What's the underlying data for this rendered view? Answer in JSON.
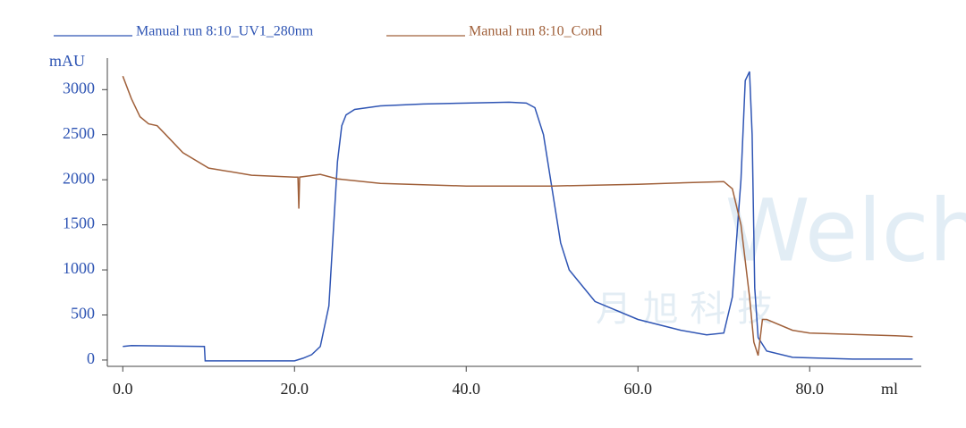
{
  "chart_data": {
    "type": "line",
    "y_label": "mAU",
    "x_label": "ml",
    "watermark": [
      "Welch",
      "月 旭 科 技"
    ],
    "xlim": [
      -1.8,
      93
    ],
    "ylim": [
      -70,
      3350
    ],
    "xticks": [
      {
        "value": 0,
        "label": "0.0"
      },
      {
        "value": 20,
        "label": "20.0"
      },
      {
        "value": 40,
        "label": "40.0"
      },
      {
        "value": 60,
        "label": "60.0"
      },
      {
        "value": 80,
        "label": "80.0"
      }
    ],
    "yticks": [
      0,
      500,
      1000,
      1500,
      2000,
      2500,
      3000
    ],
    "series": [
      {
        "name": "Manual run 8:10_UV1_280nm",
        "color": "#2f55b4",
        "x": [
          0,
          1,
          9.5,
          9.6,
          20,
          21,
          22,
          23,
          24,
          25,
          25.5,
          26,
          27,
          30,
          35,
          40,
          45,
          47,
          48,
          49,
          50,
          51,
          52,
          55,
          60,
          65,
          68,
          70,
          71,
          72,
          72.5,
          73,
          73.3,
          73.6,
          74,
          75,
          78,
          85,
          92
        ],
        "values": [
          150,
          160,
          150,
          -10,
          -10,
          20,
          60,
          150,
          600,
          2200,
          2600,
          2720,
          2780,
          2820,
          2840,
          2850,
          2860,
          2850,
          2800,
          2500,
          1900,
          1300,
          1000,
          650,
          450,
          330,
          280,
          300,
          700,
          2000,
          3100,
          3200,
          2500,
          800,
          250,
          100,
          30,
          10,
          10
        ]
      },
      {
        "name": "Manual run 8:10_Cond",
        "color": "#a0603a",
        "x": [
          0,
          1,
          2,
          3,
          4,
          5,
          7,
          10,
          15,
          20,
          20.4,
          20.5,
          20.6,
          23,
          25,
          30,
          40,
          50,
          60,
          70,
          71,
          72,
          73,
          73.5,
          74,
          74.5,
          75,
          78,
          80,
          90,
          92
        ],
        "values": [
          3150,
          2900,
          2700,
          2620,
          2600,
          2500,
          2300,
          2130,
          2050,
          2030,
          2030,
          1680,
          2030,
          2060,
          2010,
          1960,
          1930,
          1930,
          1950,
          1980,
          1900,
          1500,
          700,
          200,
          50,
          450,
          450,
          330,
          300,
          270,
          260
        ]
      }
    ]
  }
}
